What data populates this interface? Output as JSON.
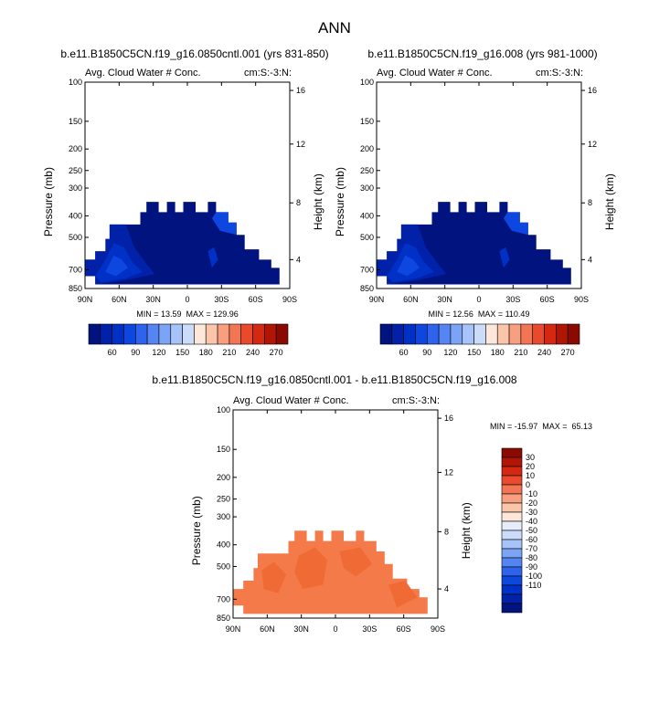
{
  "figure": {
    "title": "ANN"
  },
  "chart_data": [
    {
      "type": "heatmap",
      "case": "b.e11.B1850C5CN.f19_g16.0850cntl.001 (yrs 831-850)",
      "field": "Avg. Cloud Water # Conc.",
      "units": "cm:S:-3:N:",
      "ylabel": "Pressure (mb)",
      "y2label": "Height (km)",
      "xticks": [
        "90N",
        "60N",
        "30N",
        "0",
        "30S",
        "60S",
        "90S"
      ],
      "yticks": [
        "100",
        "150",
        "200",
        "250",
        "300",
        "400",
        "500",
        "700",
        "850"
      ],
      "y2ticks": [
        "16",
        "12",
        "8",
        "4"
      ],
      "stats": "MIN = 13.59  MAX = 129.96",
      "colorbar": {
        "orientation": "horizontal",
        "labels": [
          "60",
          "90",
          "120",
          "150",
          "180",
          "210",
          "240",
          "270"
        ]
      }
    },
    {
      "type": "heatmap",
      "case": "b.e11.B1850C5CN.f19_g16.008 (yrs 981-1000)",
      "field": "Avg. Cloud Water # Conc.",
      "units": "cm:S:-3:N:",
      "ylabel": "Pressure (mb)",
      "y2label": "Height (km)",
      "xticks": [
        "90N",
        "60N",
        "30N",
        "0",
        "30S",
        "60S",
        "90S"
      ],
      "yticks": [
        "100",
        "150",
        "200",
        "250",
        "300",
        "400",
        "500",
        "700",
        "850"
      ],
      "y2ticks": [
        "16",
        "12",
        "8",
        "4"
      ],
      "stats": "MIN = 12.56  MAX = 110.49",
      "colorbar": {
        "orientation": "horizontal",
        "labels": [
          "60",
          "90",
          "120",
          "150",
          "180",
          "210",
          "240",
          "270"
        ]
      }
    },
    {
      "type": "heatmap",
      "case": "b.e11.B1850C5CN.f19_g16.0850cntl.001 - b.e11.B1850C5CN.f19_g16.008",
      "field": "Avg. Cloud Water # Conc.",
      "units": "cm:S:-3:N:",
      "ylabel": "Pressure (mb)",
      "y2label": "Height (km)",
      "xticks": [
        "90N",
        "60N",
        "30N",
        "0",
        "30S",
        "60S",
        "90S"
      ],
      "yticks": [
        "100",
        "150",
        "200",
        "250",
        "300",
        "400",
        "500",
        "700",
        "850"
      ],
      "y2ticks": [
        "16",
        "12",
        "8",
        "4"
      ],
      "stats": "MIN = -15.97  MAX =  65.13",
      "colorbar": {
        "orientation": "vertical",
        "labels": [
          "30",
          "20",
          "10",
          "0",
          "-10",
          "-20",
          "-30",
          "-40",
          "-50",
          "-60",
          "-70",
          "-80",
          "-90",
          "-100",
          "-110"
        ]
      }
    }
  ],
  "colors": {
    "abs_scale": [
      "#00137e",
      "#0021a8",
      "#0031c6",
      "#0e47e0",
      "#2e63ee",
      "#5585f3",
      "#7ca4f6",
      "#a6c4f9",
      "#cbdcfa",
      "#fde6da",
      "#fbc5aa",
      "#f79f7e",
      "#f27554",
      "#e94a2c",
      "#d42810",
      "#b01505",
      "#8a0a02"
    ],
    "diff_scale": [
      "#00137e",
      "#0021a8",
      "#0031c6",
      "#0e47e0",
      "#2e63ee",
      "#5585f3",
      "#7ca4f6",
      "#a6c4f9",
      "#cbdcfa",
      "#e6ecfb",
      "#fde6da",
      "#fbc5aa",
      "#f79f7e",
      "#f27554",
      "#e94a2c",
      "#d42810",
      "#b01505",
      "#8a0a02"
    ],
    "diff_fill": "#f57a4a",
    "diff_fill_hi": "#f06a35"
  }
}
